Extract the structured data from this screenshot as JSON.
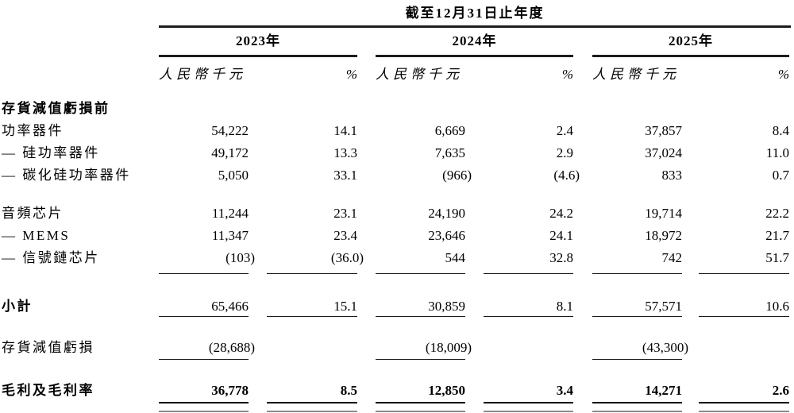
{
  "table": {
    "period_title": "截至12月31日止年度",
    "years": [
      "2023年",
      "2024年",
      "2025年"
    ],
    "column_headers": {
      "amount": "人民幣千元",
      "percent": "%"
    },
    "rows": [
      {
        "label": "存貨減值虧損前",
        "values": [
          "",
          "",
          "",
          "",
          "",
          ""
        ]
      },
      {
        "label": "功率器件",
        "values": [
          "54,222",
          "14.1",
          "6,669",
          "2.4",
          "37,857",
          "8.4"
        ]
      },
      {
        "label": "— 硅功率器件",
        "values": [
          "49,172",
          "13.3",
          "7,635",
          "2.9",
          "37,024",
          "11.0"
        ]
      },
      {
        "label": "— 碳化硅功率器件",
        "values": [
          "5,050",
          "33.1",
          "(966)",
          "(4.6)",
          "833",
          "0.7"
        ]
      },
      {
        "label": "音頻芯片",
        "values": [
          "11,244",
          "23.1",
          "24,190",
          "24.2",
          "19,714",
          "22.2"
        ]
      },
      {
        "label": "— MEMS",
        "values": [
          "11,347",
          "23.4",
          "23,646",
          "24.1",
          "18,972",
          "21.7"
        ]
      },
      {
        "label": "— 信號鏈芯片",
        "values": [
          "(103)",
          "(36.0)",
          "544",
          "32.8",
          "742",
          "51.7"
        ]
      },
      {
        "label": "小計",
        "values": [
          "65,466",
          "15.1",
          "30,859",
          "8.1",
          "57,571",
          "10.6"
        ]
      },
      {
        "label": "存貨減值虧損",
        "values": [
          "(28,688)",
          "",
          "(18,009)",
          "",
          "(43,300)",
          ""
        ]
      },
      {
        "label": "毛利及毛利率",
        "values": [
          "36,778",
          "8.5",
          "12,850",
          "3.4",
          "14,271",
          "2.6"
        ]
      }
    ]
  }
}
